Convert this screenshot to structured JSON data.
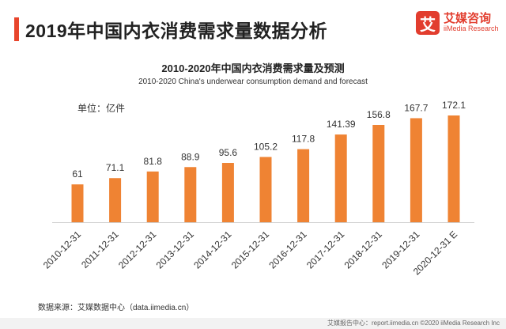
{
  "header": {
    "title": "2019年中国内衣消费需求量数据分析"
  },
  "brand": {
    "mark": "艾",
    "name_cn": "艾媒咨询",
    "name_en": "iiMedia Research"
  },
  "chart_data": {
    "type": "bar",
    "title": "2010-2020年中国内衣消费需求量及预测",
    "subtitle": "2010-2020 China's underwear consumption demand and forecast",
    "unit_label": "单位：亿件",
    "categories": [
      "2010-12-31",
      "2011-12-31",
      "2012-12-31",
      "2013-12-31",
      "2014-12-31",
      "2015-12-31",
      "2016-12-31",
      "2017-12-31",
      "2018-12-31",
      "2019-12-31",
      "2020-12-31 E"
    ],
    "values": [
      61,
      71.1,
      81.8,
      88.9,
      95.6,
      105.2,
      117.8,
      141.39,
      156.8,
      167.7,
      172.1
    ],
    "value_labels": [
      "61",
      "71.1",
      "81.8",
      "88.9",
      "95.6",
      "105.2",
      "117.8",
      "141.39",
      "156.8",
      "167.7",
      "172.1"
    ],
    "ylim": [
      0,
      180
    ],
    "grid": false,
    "bar_color": "#ef8333"
  },
  "source_note": "数据来源：艾媒数据中心（data.iimedia.cn）",
  "footer": {
    "text": "艾媒报告中心：report.iimedia.cn   ©2020  iiMedia Research  Inc"
  }
}
